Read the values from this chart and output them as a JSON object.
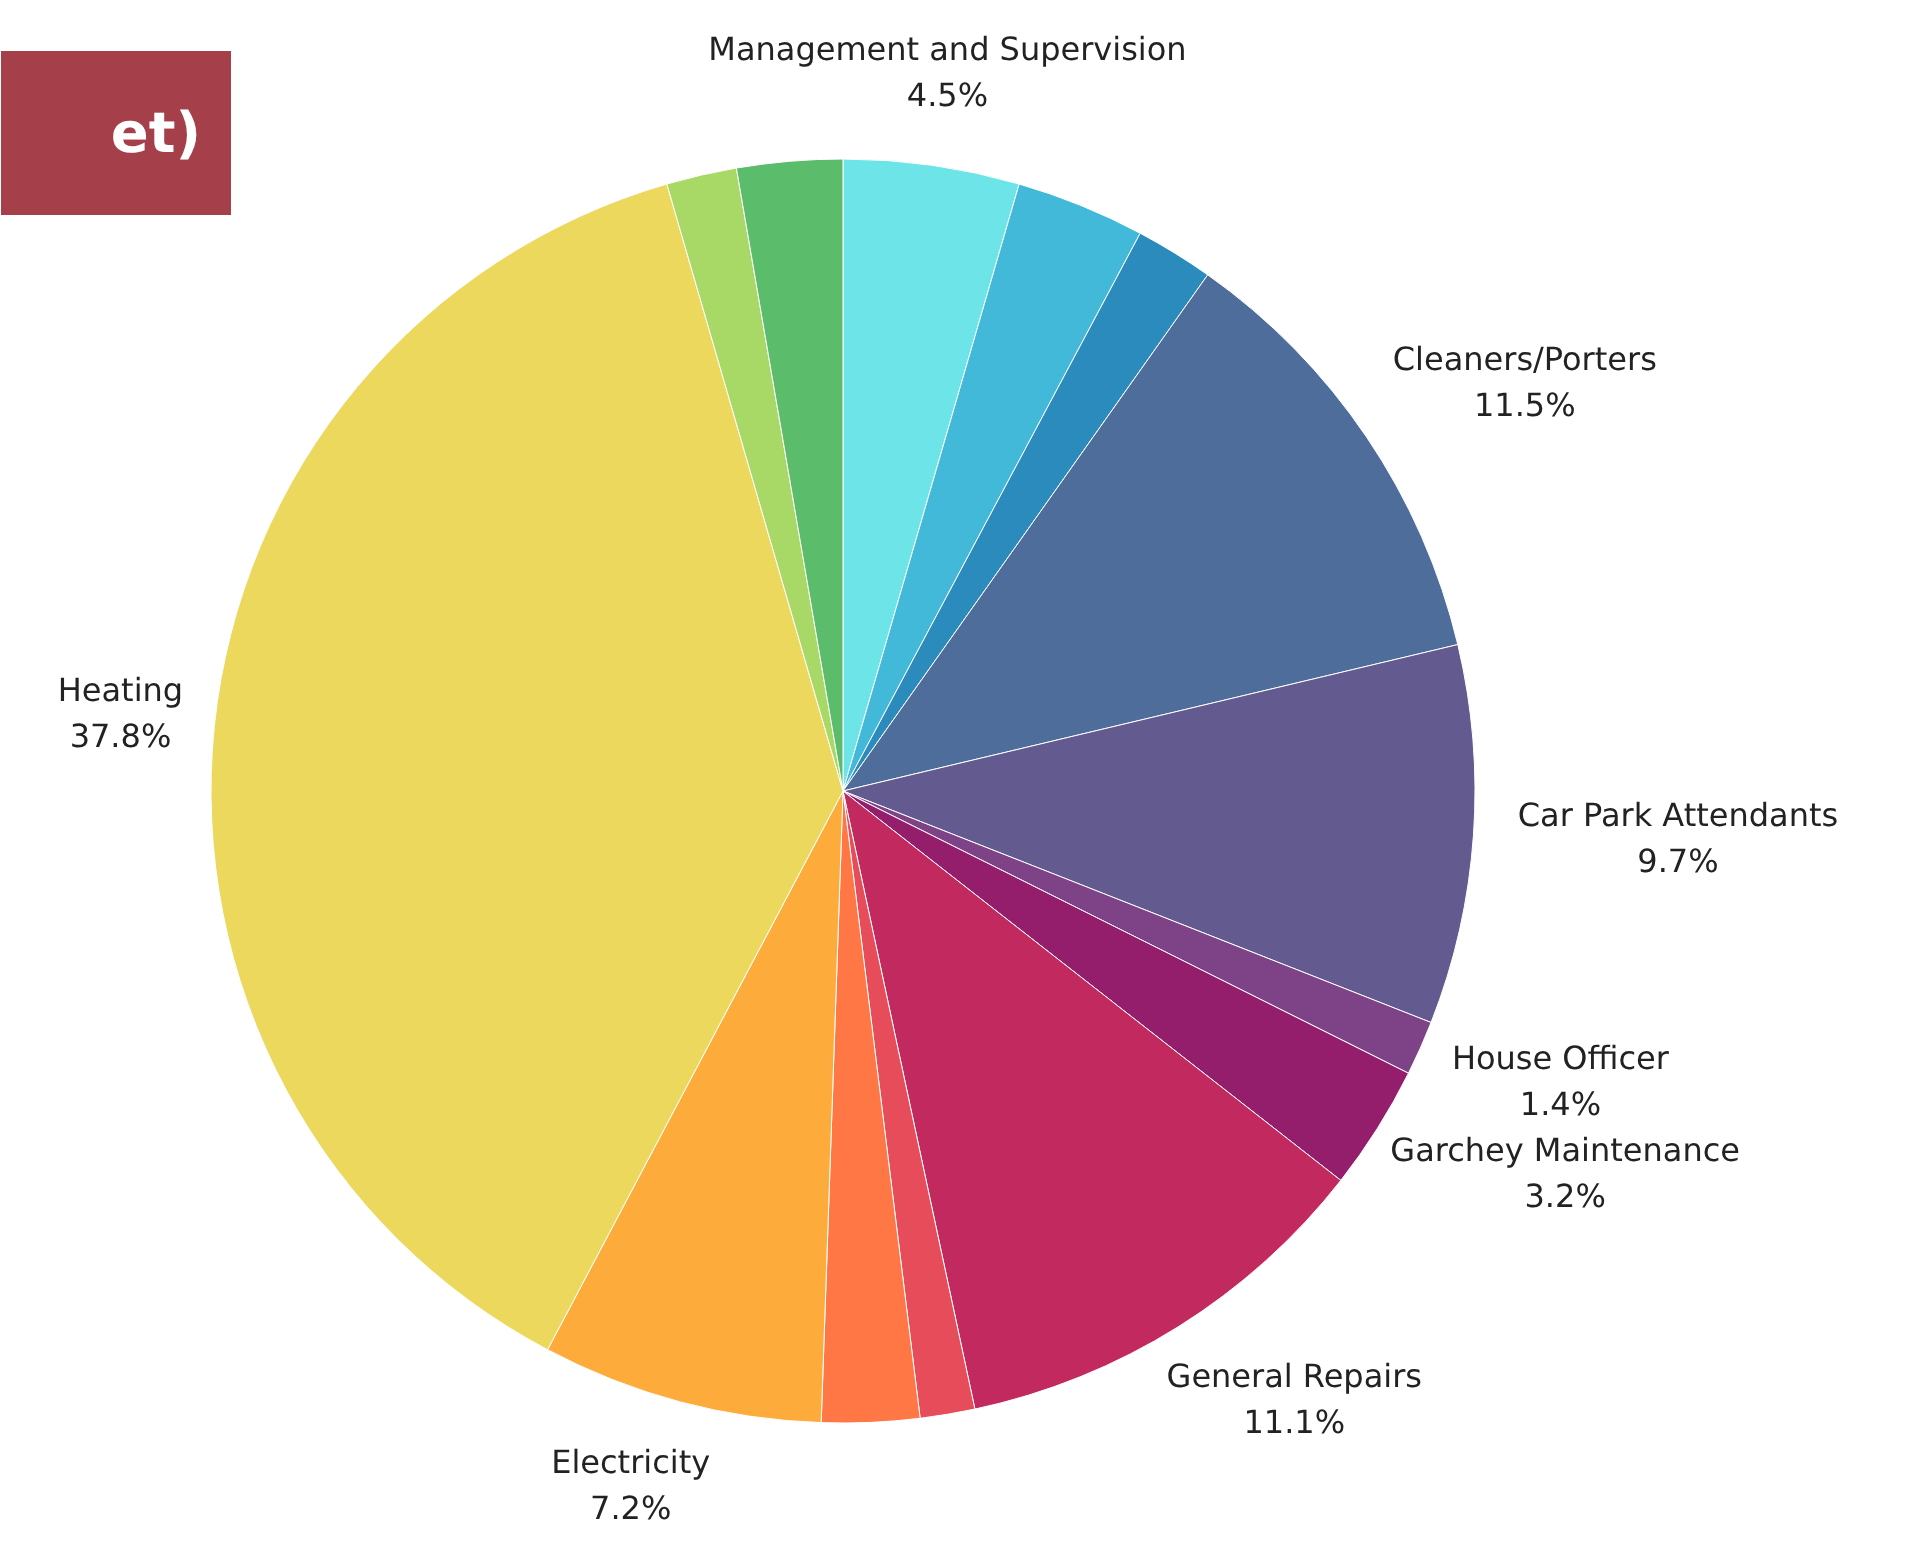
{
  "chart_data": {
    "type": "pie",
    "title": "et)",
    "categories": [
      "Management and Supervision",
      null,
      null,
      "Cleaners/Porters",
      "Car Park Attendants",
      "House Officer",
      "Garchey Maintenance",
      "General Repairs",
      null,
      null,
      "Electricity",
      "Heating",
      null,
      null
    ],
    "values": [
      4.5,
      3.3,
      2.0,
      11.5,
      9.7,
      1.4,
      3.2,
      11.1,
      1.4,
      2.5,
      7.2,
      37.8,
      1.8,
      2.7
    ],
    "value_labels": [
      "4.5%",
      null,
      null,
      "11.5%",
      "9.7%",
      "1.4%",
      "3.2%",
      "11.1%",
      null,
      null,
      "7.2%",
      "37.8%",
      null,
      null
    ],
    "colors": [
      "#6ce4e8",
      "#42b9d8",
      "#2c8bbd",
      "#4e6d9a",
      "#635a8f",
      "#7e4286",
      "#941e6c",
      "#c1295f",
      "#e74c5a",
      "#fe7744",
      "#fdab3a",
      "#ecd85c",
      "#a8d865",
      "#5bbd6b"
    ]
  }
}
